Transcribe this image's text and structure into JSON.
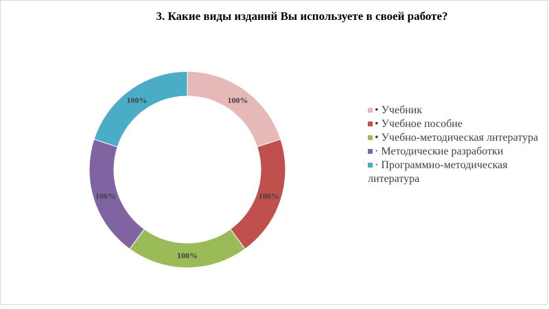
{
  "chart_data": {
    "type": "pie",
    "title": "3. Какие виды изданий Вы используете в своей работе?",
    "categories": [
      "• Учебник",
      "• Учебное пособие",
      "• Учебно-методическая литература",
      "· Методические разработки",
      "· Программно-методическая литература"
    ],
    "values": [
      100,
      100,
      100,
      100,
      100
    ],
    "data_labels": [
      "100%",
      "100%",
      "100%",
      "100%",
      "100%"
    ],
    "colors": [
      "#e6b9b8",
      "#c0504d",
      "#9bbb59",
      "#8064a2",
      "#4bacc6"
    ],
    "legend_position": "right"
  }
}
